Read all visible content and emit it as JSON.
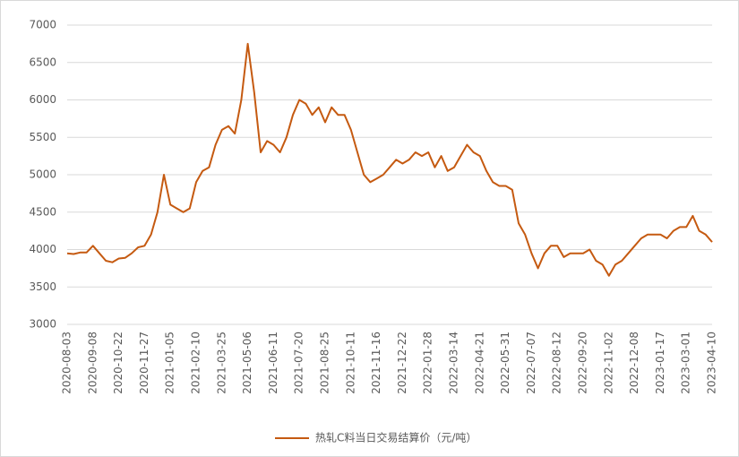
{
  "chart_data": {
    "type": "line",
    "categories": [
      "2020-08-03",
      null,
      null,
      null,
      "2020-09-08",
      null,
      null,
      null,
      "2020-10-22",
      null,
      null,
      null,
      "2020-11-27",
      null,
      null,
      null,
      "2021-01-05",
      null,
      null,
      null,
      "2021-02-10",
      null,
      null,
      null,
      "2021-03-25",
      null,
      null,
      null,
      "2021-05-06",
      null,
      null,
      null,
      "2021-06-11",
      null,
      null,
      null,
      "2021-07-20",
      null,
      null,
      null,
      "2021-08-25",
      null,
      null,
      null,
      "2021-10-11",
      null,
      null,
      null,
      "2021-11-16",
      null,
      null,
      null,
      "2021-12-22",
      null,
      null,
      null,
      "2022-01-28",
      null,
      null,
      null,
      "2022-03-14",
      null,
      null,
      null,
      "2022-04-21",
      null,
      null,
      null,
      "2022-05-31",
      null,
      null,
      null,
      "2022-07-07",
      null,
      null,
      null,
      "2022-08-12",
      null,
      null,
      null,
      "2022-09-20",
      null,
      null,
      null,
      "2022-11-02",
      null,
      null,
      null,
      "2022-12-08",
      null,
      null,
      null,
      "2023-01-17",
      null,
      null,
      null,
      "2023-03-01",
      null,
      null,
      null,
      "2023-04-10"
    ],
    "series": [
      {
        "name": "热轧C料当日交易结算价（元/吨）",
        "color": "#c55a11",
        "values": [
          3950,
          3940,
          3960,
          3960,
          4050,
          3950,
          3850,
          3830,
          3880,
          3890,
          3950,
          4030,
          4050,
          4200,
          4500,
          5000,
          4600,
          4550,
          4500,
          4550,
          4900,
          5050,
          5100,
          5400,
          5600,
          5650,
          5550,
          6000,
          6750,
          6100,
          5300,
          5450,
          5400,
          5300,
          5500,
          5800,
          6000,
          5950,
          5800,
          5900,
          5700,
          5900,
          5800,
          5800,
          5600,
          5300,
          5000,
          4900,
          4950,
          5000,
          5100,
          5200,
          5150,
          5200,
          5300,
          5250,
          5300,
          5100,
          5250,
          5050,
          5100,
          5250,
          5400,
          5300,
          5250,
          5050,
          4900,
          4850,
          4850,
          4800,
          4350,
          4200,
          3950,
          3750,
          3950,
          4050,
          4050,
          3900,
          3950,
          3950,
          3950,
          4000,
          3850,
          3800,
          3650,
          3800,
          3850,
          3950,
          4050,
          4150,
          4200,
          4200,
          4200,
          4150,
          4250,
          4300,
          4300,
          4450,
          4250,
          4200,
          4100
        ]
      }
    ],
    "ylim": [
      3000,
      7000
    ],
    "yticks": [
      3000,
      3500,
      4000,
      4500,
      5000,
      5500,
      6000,
      6500,
      7000
    ],
    "grid": true,
    "legend": "bottom"
  }
}
